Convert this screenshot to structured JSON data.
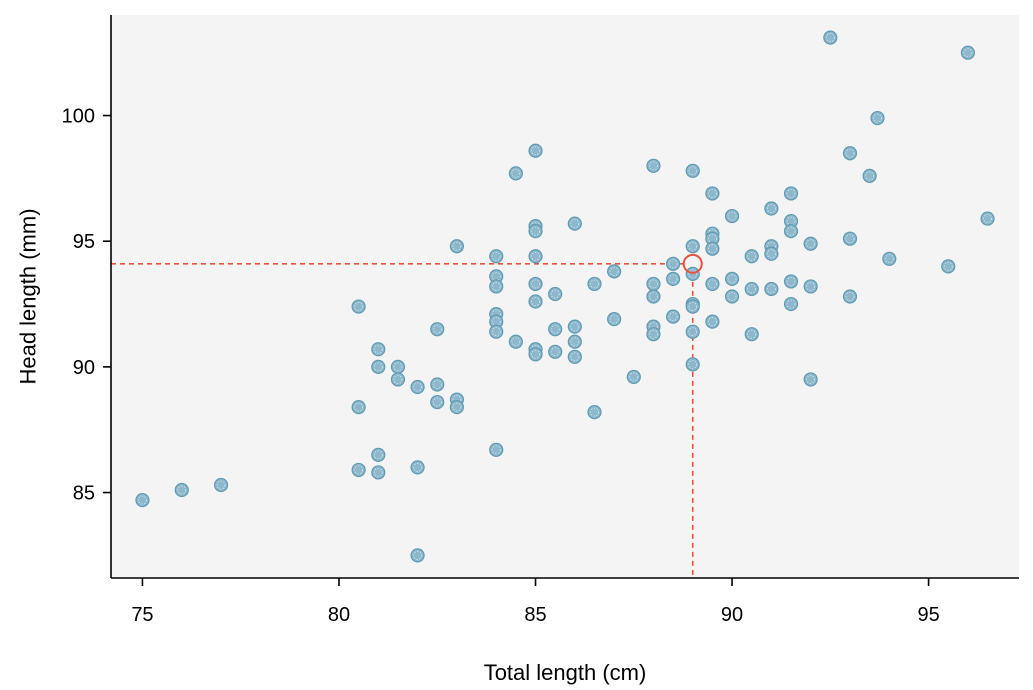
{
  "chart_data": {
    "type": "scatter",
    "xlabel": "Total length (cm)",
    "ylabel": "Head length (mm)",
    "xlim": [
      74.2,
      97.3
    ],
    "ylim": [
      81.6,
      104
    ],
    "xticks": [
      75,
      80,
      85,
      90,
      95
    ],
    "yticks": [
      85,
      90,
      95,
      100
    ],
    "colors": {
      "background": "#f4f4f4",
      "point": "#8db8cc",
      "point_edge": "#5f9ab3",
      "highlight": "#e8533f"
    },
    "grid": false,
    "highlight": {
      "x": 89,
      "y": 94.1
    },
    "points": [
      [
        75,
        84.7
      ],
      [
        76,
        85.1
      ],
      [
        77,
        85.3
      ],
      [
        80.5,
        92.4
      ],
      [
        80.5,
        88.4
      ],
      [
        80.5,
        85.9
      ],
      [
        81,
        90.7
      ],
      [
        81,
        90.0
      ],
      [
        81,
        86.5
      ],
      [
        81,
        85.8
      ],
      [
        81.5,
        90.0
      ],
      [
        81.5,
        89.5
      ],
      [
        82,
        89.2
      ],
      [
        82,
        86.0
      ],
      [
        82,
        82.5
      ],
      [
        82.5,
        91.5
      ],
      [
        82.5,
        89.3
      ],
      [
        82.5,
        88.6
      ],
      [
        83,
        94.8
      ],
      [
        83,
        88.7
      ],
      [
        83,
        88.4
      ],
      [
        84,
        94.4
      ],
      [
        84,
        93.6
      ],
      [
        84,
        93.2
      ],
      [
        84,
        92.1
      ],
      [
        84,
        91.8
      ],
      [
        84,
        91.4
      ],
      [
        84,
        86.7
      ],
      [
        84.5,
        97.7
      ],
      [
        84.5,
        91.0
      ],
      [
        85,
        98.6
      ],
      [
        85,
        95.6
      ],
      [
        85,
        95.4
      ],
      [
        85,
        94.4
      ],
      [
        85,
        93.3
      ],
      [
        85,
        92.6
      ],
      [
        85,
        90.7
      ],
      [
        85,
        90.5
      ],
      [
        85.5,
        92.9
      ],
      [
        85.5,
        91.5
      ],
      [
        85.5,
        90.6
      ],
      [
        86,
        95.7
      ],
      [
        86,
        91.6
      ],
      [
        86,
        91.0
      ],
      [
        86,
        90.4
      ],
      [
        86.5,
        93.3
      ],
      [
        86.5,
        88.2
      ],
      [
        87,
        93.8
      ],
      [
        87,
        91.9
      ],
      [
        87.5,
        89.6
      ],
      [
        88,
        98.0
      ],
      [
        88,
        93.3
      ],
      [
        88,
        92.8
      ],
      [
        88,
        91.6
      ],
      [
        88,
        91.3
      ],
      [
        88.5,
        94.1
      ],
      [
        88.5,
        93.5
      ],
      [
        88.5,
        92.0
      ],
      [
        89,
        97.8
      ],
      [
        89,
        94.8
      ],
      [
        89,
        93.7
      ],
      [
        89,
        92.5
      ],
      [
        89,
        92.4
      ],
      [
        89,
        91.4
      ],
      [
        89,
        90.1
      ],
      [
        89.5,
        96.9
      ],
      [
        89.5,
        95.3
      ],
      [
        89.5,
        95.1
      ],
      [
        89.5,
        94.7
      ],
      [
        89.5,
        93.3
      ],
      [
        89.5,
        91.8
      ],
      [
        90,
        96.0
      ],
      [
        90,
        93.5
      ],
      [
        90,
        92.8
      ],
      [
        90.5,
        94.4
      ],
      [
        90.5,
        93.1
      ],
      [
        90.5,
        91.3
      ],
      [
        91,
        96.3
      ],
      [
        91,
        94.8
      ],
      [
        91,
        94.5
      ],
      [
        91,
        93.1
      ],
      [
        91.5,
        96.9
      ],
      [
        91.5,
        95.8
      ],
      [
        91.5,
        95.4
      ],
      [
        91.5,
        93.4
      ],
      [
        91.5,
        92.5
      ],
      [
        92,
        94.9
      ],
      [
        92,
        93.2
      ],
      [
        92,
        89.5
      ],
      [
        92.5,
        103.1
      ],
      [
        93,
        98.5
      ],
      [
        93,
        95.1
      ],
      [
        93,
        92.8
      ],
      [
        93.5,
        97.6
      ],
      [
        93.7,
        99.9
      ],
      [
        94,
        94.3
      ],
      [
        95.5,
        94.0
      ],
      [
        96,
        102.5
      ],
      [
        96.5,
        95.9
      ]
    ]
  }
}
